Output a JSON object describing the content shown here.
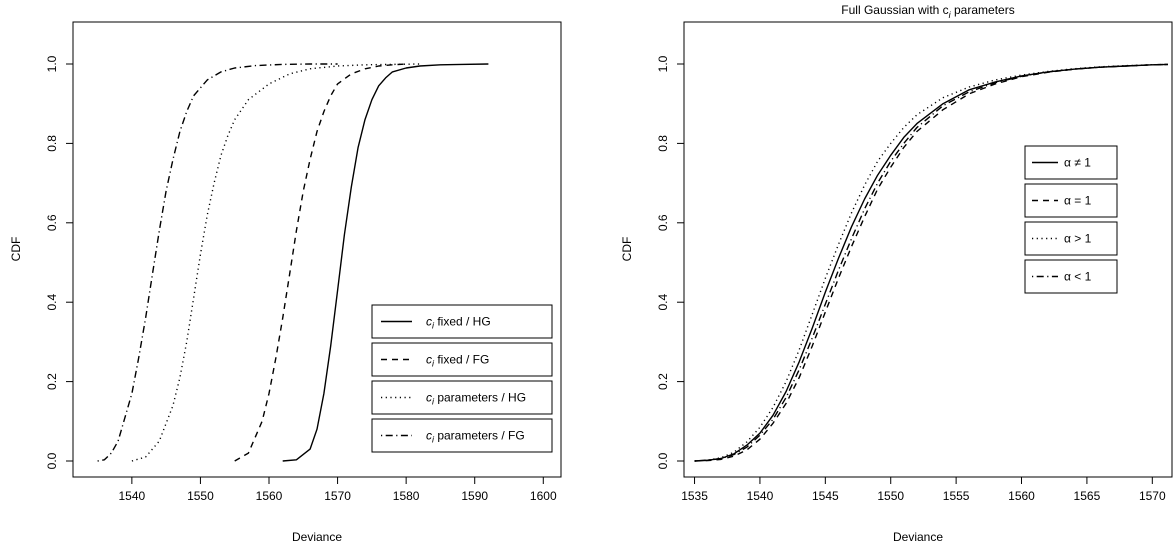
{
  "chart_data": [
    {
      "type": "line",
      "title": "",
      "xlabel": "Deviance",
      "ylabel": "CDF",
      "xlim": [
        1532,
        1602
      ],
      "ylim": [
        0,
        1
      ],
      "xticks": [
        "1540",
        "1550",
        "1560",
        "1570",
        "1580",
        "1590",
        "1600"
      ],
      "yticks": [
        "0.0",
        "0.2",
        "0.4",
        "0.6",
        "0.8",
        "1.0"
      ],
      "grid": false,
      "legend_position": "bottom-right",
      "series": [
        {
          "name": "c_i fixed / HG",
          "legend_main": "c",
          "legend_sub": "i",
          "legend_rest": " fixed / HG",
          "linestyle": "solid",
          "x": [
            1562,
            1564,
            1566,
            1567,
            1568,
            1569,
            1570,
            1571,
            1572,
            1573,
            1574,
            1575,
            1576,
            1577,
            1578,
            1580,
            1582,
            1585,
            1588,
            1592
          ],
          "y": [
            0.0,
            0.003,
            0.03,
            0.08,
            0.17,
            0.29,
            0.43,
            0.57,
            0.69,
            0.79,
            0.86,
            0.91,
            0.945,
            0.965,
            0.98,
            0.99,
            0.995,
            0.998,
            0.999,
            1.0
          ]
        },
        {
          "name": "c_i fixed / FG",
          "legend_main": "c",
          "legend_sub": "i",
          "legend_rest": " fixed / FG",
          "linestyle": "dashed",
          "x": [
            1555,
            1557,
            1559,
            1560,
            1561,
            1562,
            1563,
            1564,
            1565,
            1566,
            1567,
            1568,
            1569,
            1570,
            1572,
            1574,
            1576,
            1578,
            1580
          ],
          "y": [
            0.0,
            0.02,
            0.1,
            0.17,
            0.26,
            0.36,
            0.47,
            0.58,
            0.68,
            0.76,
            0.83,
            0.88,
            0.92,
            0.95,
            0.975,
            0.988,
            0.995,
            0.998,
            1.0
          ]
        },
        {
          "name": "c_i parameters / HG",
          "legend_main": "c",
          "legend_sub": "i",
          "legend_rest": " parameters / HG",
          "linestyle": "dotted",
          "x": [
            1540,
            1542,
            1544,
            1546,
            1547,
            1548,
            1549,
            1550,
            1551,
            1552,
            1553,
            1554,
            1555,
            1557,
            1560,
            1563,
            1566,
            1570,
            1574,
            1578,
            1582
          ],
          "y": [
            0.0,
            0.01,
            0.05,
            0.14,
            0.21,
            0.3,
            0.41,
            0.52,
            0.62,
            0.7,
            0.77,
            0.82,
            0.86,
            0.91,
            0.95,
            0.975,
            0.988,
            0.995,
            0.998,
            0.999,
            1.0
          ]
        },
        {
          "name": "c_i parameters / FG",
          "legend_main": "c",
          "legend_sub": "i",
          "legend_rest": " parameters / FG",
          "linestyle": "dotdash",
          "x": [
            1535,
            1536,
            1537,
            1538,
            1540,
            1541,
            1542,
            1543,
            1544,
            1545,
            1546,
            1547,
            1548,
            1549,
            1551,
            1553,
            1555,
            1558,
            1562,
            1566,
            1570
          ],
          "y": [
            0.0,
            0.003,
            0.02,
            0.05,
            0.17,
            0.26,
            0.36,
            0.47,
            0.58,
            0.68,
            0.76,
            0.83,
            0.88,
            0.92,
            0.96,
            0.98,
            0.99,
            0.996,
            0.999,
            1.0,
            1.0
          ]
        }
      ]
    },
    {
      "type": "line",
      "title_main": "Full Gaussian with  c",
      "title_sub": "i",
      "title_rest": "  parameters",
      "xlabel": "Deviance",
      "ylabel": "CDF",
      "xlim": [
        1534.5,
        1571.2
      ],
      "ylim": [
        0,
        1
      ],
      "xticks": [
        "1535",
        "1540",
        "1545",
        "1550",
        "1555",
        "1560",
        "1565",
        "1570"
      ],
      "yticks": [
        "0.0",
        "0.2",
        "0.4",
        "0.6",
        "0.8",
        "1.0"
      ],
      "grid": false,
      "legend_position": "top-right",
      "series": [
        {
          "name": "α ≠ 1",
          "linestyle": "solid",
          "x": [
            1535,
            1536,
            1537,
            1538,
            1539,
            1540,
            1541,
            1542,
            1543,
            1544,
            1545,
            1546,
            1547,
            1548,
            1549,
            1550,
            1551,
            1552,
            1554,
            1556,
            1558,
            1560,
            1562,
            1564,
            1566,
            1568,
            1570,
            1571.2
          ],
          "y": [
            0.0,
            0.002,
            0.006,
            0.018,
            0.04,
            0.07,
            0.115,
            0.175,
            0.25,
            0.335,
            0.425,
            0.51,
            0.59,
            0.66,
            0.72,
            0.77,
            0.815,
            0.85,
            0.9,
            0.935,
            0.955,
            0.97,
            0.98,
            0.987,
            0.992,
            0.995,
            0.998,
            0.999
          ]
        },
        {
          "name": "α = 1",
          "linestyle": "dashed",
          "x": [
            1535,
            1536,
            1537,
            1538,
            1539,
            1540,
            1541,
            1542,
            1543,
            1544,
            1545,
            1546,
            1547,
            1548,
            1549,
            1550,
            1551,
            1552,
            1554,
            1556,
            1558,
            1560,
            1562,
            1564,
            1566,
            1568,
            1570,
            1571.2
          ],
          "y": [
            0.0,
            0.001,
            0.004,
            0.012,
            0.028,
            0.055,
            0.095,
            0.145,
            0.21,
            0.29,
            0.375,
            0.46,
            0.54,
            0.615,
            0.685,
            0.74,
            0.79,
            0.83,
            0.885,
            0.925,
            0.95,
            0.968,
            0.979,
            0.987,
            0.992,
            0.995,
            0.998,
            0.999
          ]
        },
        {
          "name": "α > 1",
          "linestyle": "dotted",
          "x": [
            1535,
            1536,
            1537,
            1538,
            1539,
            1540,
            1541,
            1542,
            1543,
            1544,
            1545,
            1546,
            1547,
            1548,
            1549,
            1550,
            1551,
            1552,
            1554,
            1556,
            1558,
            1560,
            1562,
            1564,
            1566,
            1568,
            1570,
            1571.2
          ],
          "y": [
            0.0,
            0.002,
            0.008,
            0.022,
            0.048,
            0.085,
            0.135,
            0.2,
            0.28,
            0.37,
            0.46,
            0.545,
            0.625,
            0.695,
            0.755,
            0.8,
            0.84,
            0.872,
            0.915,
            0.942,
            0.96,
            0.972,
            0.981,
            0.988,
            0.993,
            0.996,
            0.998,
            0.999
          ]
        },
        {
          "name": "α < 1",
          "linestyle": "dotdash",
          "x": [
            1535,
            1536,
            1537,
            1538,
            1539,
            1540,
            1541,
            1542,
            1543,
            1544,
            1545,
            1546,
            1547,
            1548,
            1549,
            1550,
            1551,
            1552,
            1554,
            1556,
            1558,
            1560,
            1562,
            1564,
            1566,
            1568,
            1570,
            1571.2
          ],
          "y": [
            0.0,
            0.002,
            0.006,
            0.016,
            0.035,
            0.065,
            0.105,
            0.16,
            0.23,
            0.31,
            0.395,
            0.48,
            0.56,
            0.635,
            0.7,
            0.755,
            0.8,
            0.84,
            0.895,
            0.93,
            0.953,
            0.969,
            0.98,
            0.987,
            0.992,
            0.995,
            0.998,
            0.999
          ]
        }
      ]
    }
  ]
}
